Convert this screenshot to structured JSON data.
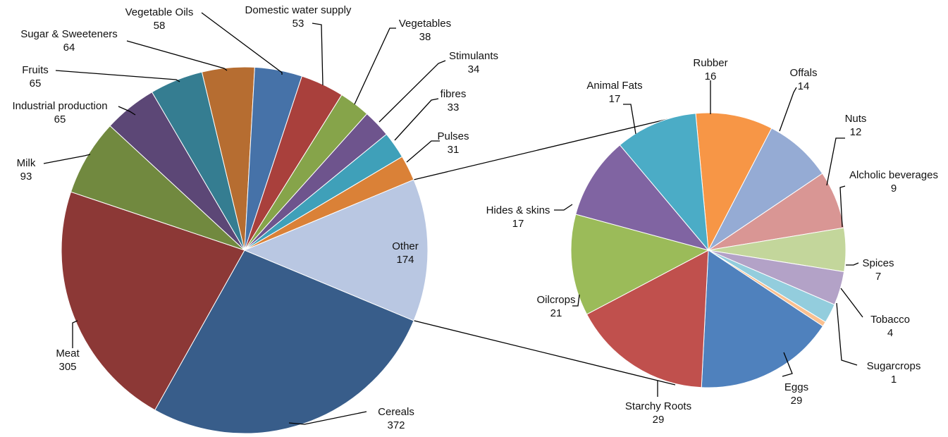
{
  "chart_data": {
    "type": "pie",
    "title": "",
    "main_pie": {
      "slices": [
        {
          "label": "Cereals",
          "value": 372,
          "color": "#385D8A"
        },
        {
          "label": "Meat",
          "value": 305,
          "color": "#8C3836"
        },
        {
          "label": "Milk",
          "value": 93,
          "color": "#71893F"
        },
        {
          "label": "Industrial production",
          "value": 65,
          "color": "#5C4776"
        },
        {
          "label": "Fruits",
          "value": 65,
          "color": "#357D91"
        },
        {
          "label": "Sugar & Sweeteners",
          "value": 64,
          "color": "#B66D31"
        },
        {
          "label": "Vegetable Oils",
          "value": 58,
          "color": "#4672A8"
        },
        {
          "label": "Domestic water supply",
          "value": 53,
          "color": "#A9403C"
        },
        {
          "label": "Vegetables",
          "value": 38,
          "color": "#86A44A"
        },
        {
          "label": "Stimulants",
          "value": 34,
          "color": "#6E548D"
        },
        {
          "label": "fibres",
          "value": 33,
          "color": "#3FA0B9"
        },
        {
          "label": "Pulses",
          "value": 31,
          "color": "#DA8137"
        },
        {
          "label": "Other",
          "value": 174,
          "color": "#B9C7E2"
        }
      ]
    },
    "secondary_pie": {
      "slices": [
        {
          "label": "Rubber",
          "value": 16,
          "color": "#F79646"
        },
        {
          "label": "Offals",
          "value": 14,
          "color": "#95ABD4"
        },
        {
          "label": "Nuts",
          "value": 12,
          "color": "#D99694"
        },
        {
          "label": "Alcholic beverages",
          "value": 9,
          "color": "#C3D69B"
        },
        {
          "label": "Spices",
          "value": 7,
          "color": "#B3A2C7"
        },
        {
          "label": "Tobacco",
          "value": 4,
          "color": "#93CDDD"
        },
        {
          "label": "Sugarcrops",
          "value": 1,
          "color": "#FAC090"
        },
        {
          "label": "Eggs",
          "value": 29,
          "color": "#4F81BD"
        },
        {
          "label": "Starchy Roots",
          "value": 29,
          "color": "#C0504D"
        },
        {
          "label": "Oilcrops",
          "value": 21,
          "color": "#9BBB59"
        },
        {
          "label": "Hides & skins",
          "value": 17,
          "color": "#8064A2"
        },
        {
          "label": "Animal Fats",
          "value": 17,
          "color": "#4BACC6"
        }
      ]
    }
  }
}
